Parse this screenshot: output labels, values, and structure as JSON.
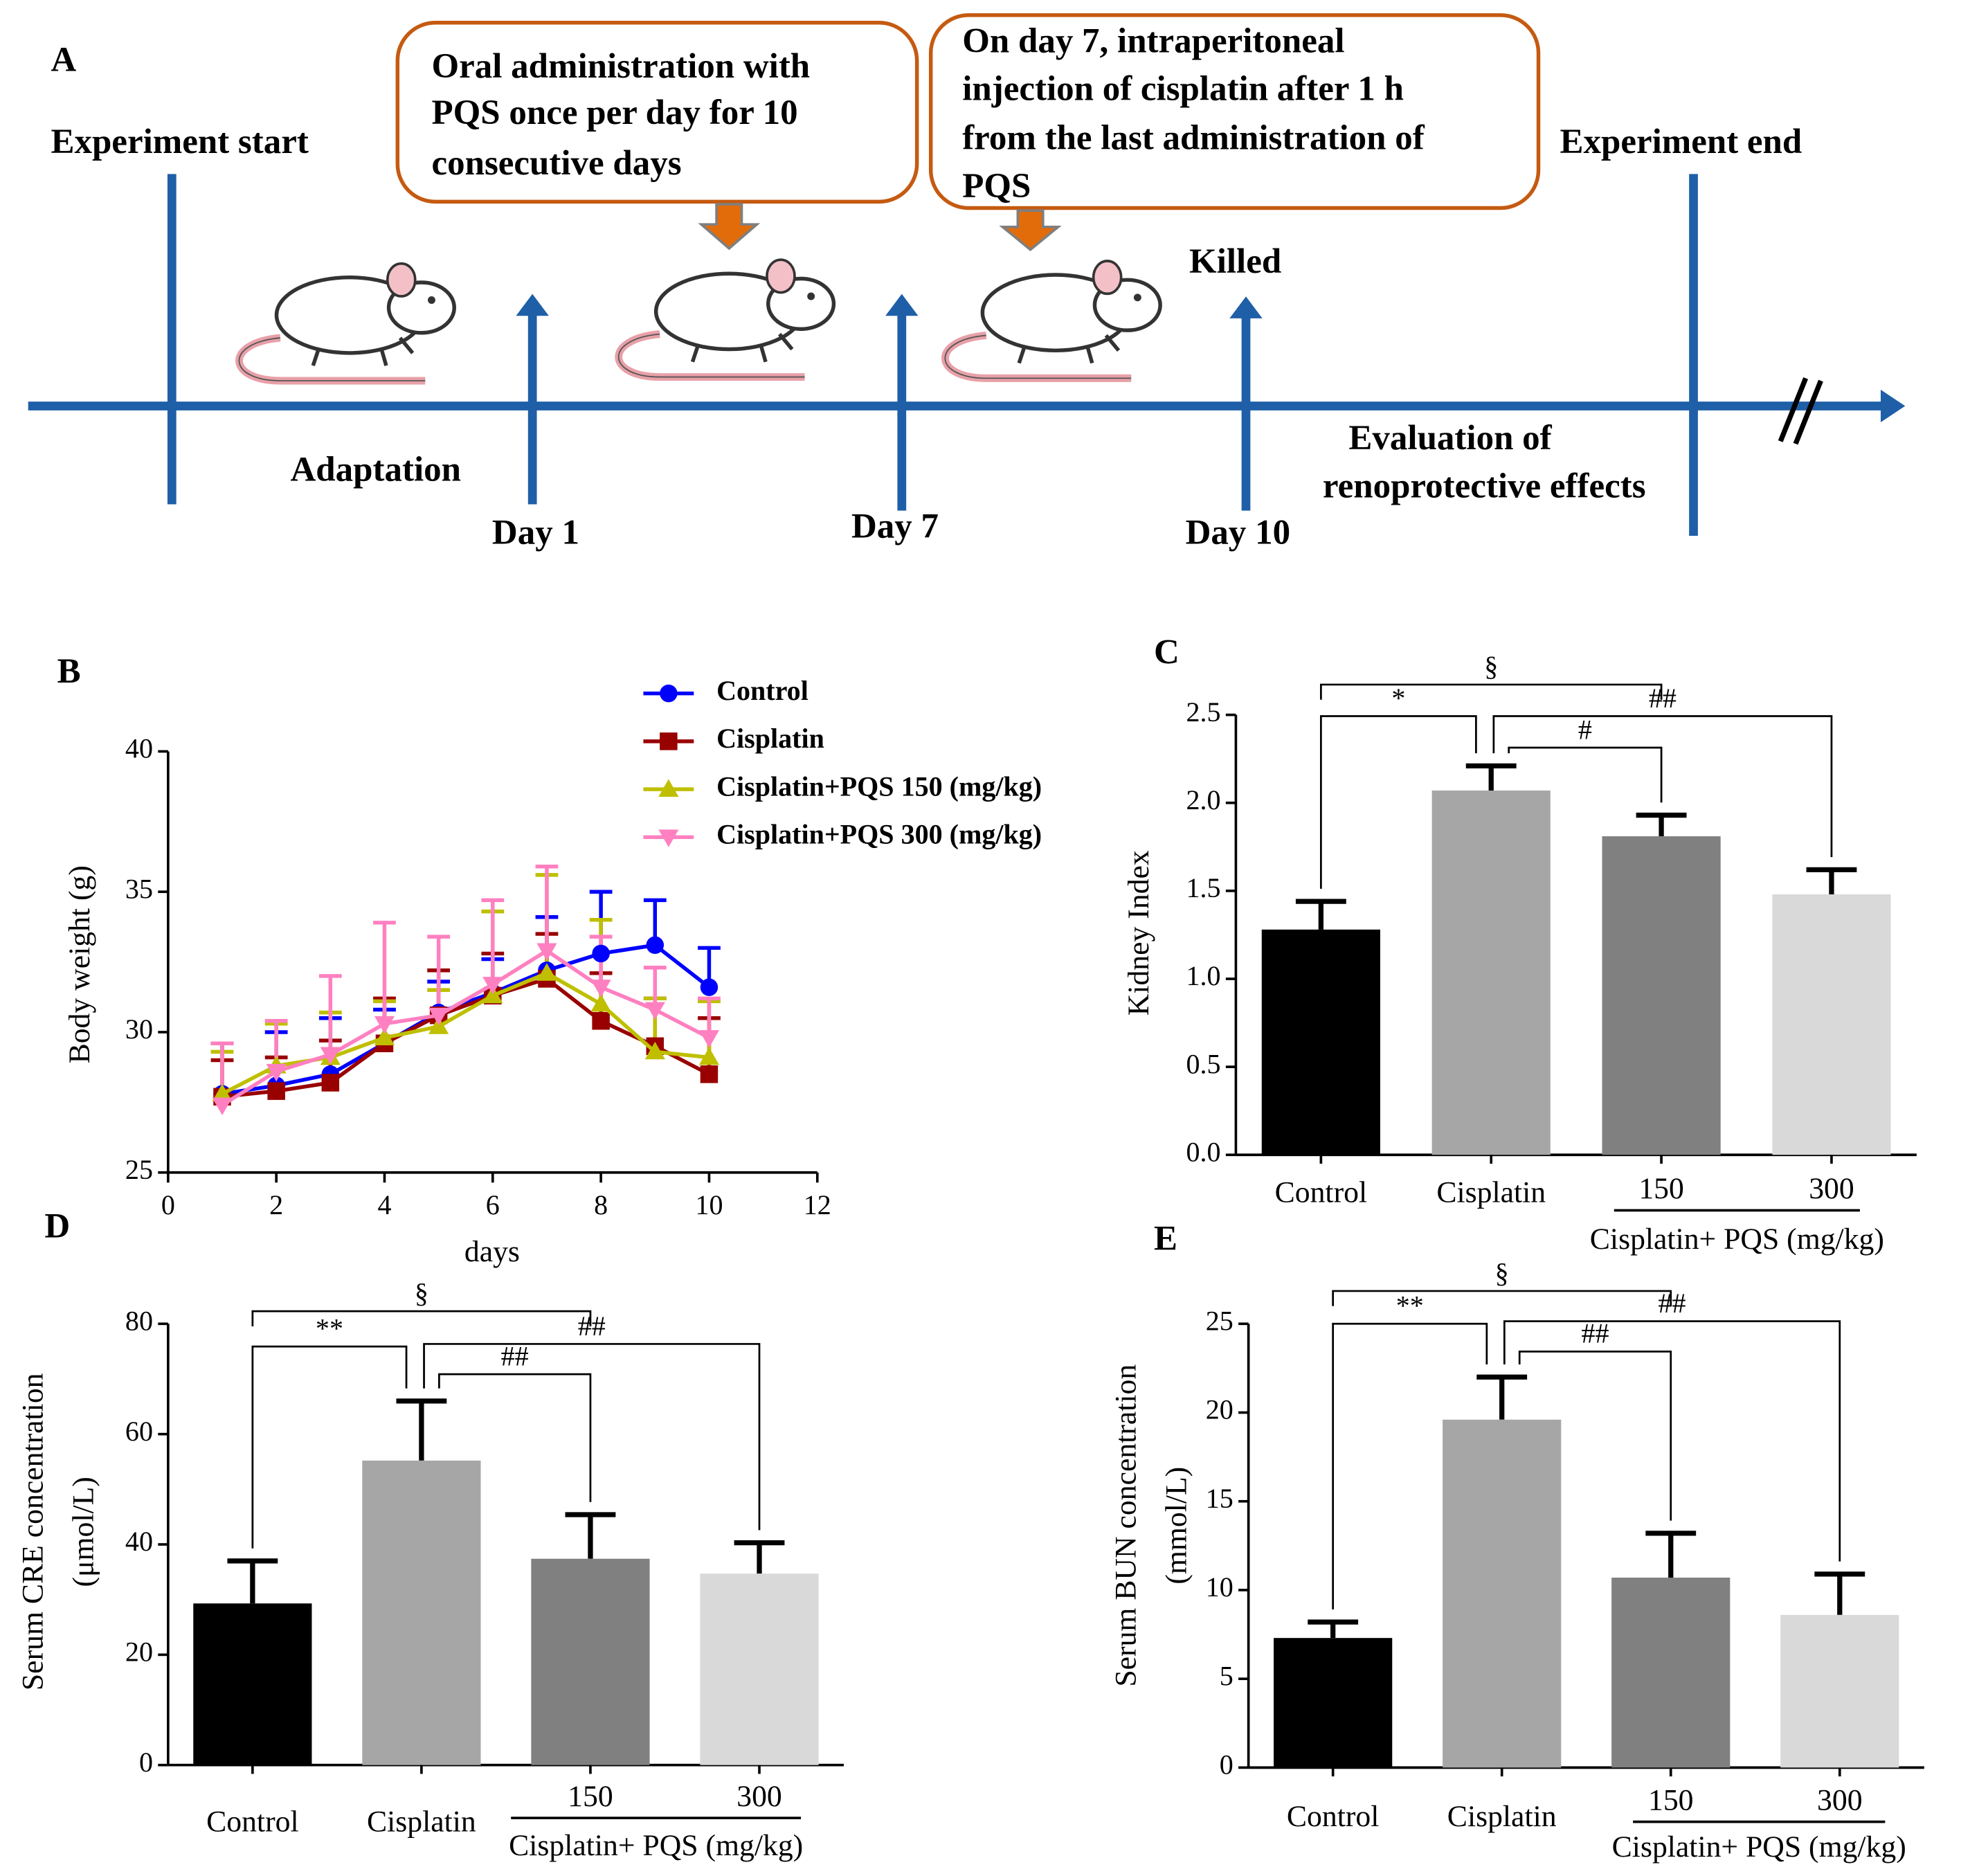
{
  "diagram": {
    "label": "A",
    "start": "Experiment start",
    "end": "Experiment end",
    "box1": [
      "Oral administration  with",
      "PQS once per day for 10",
      "consecutive days"
    ],
    "box2": [
      "On day 7, intraperitoneal",
      "injection of cisplatin  after 1 h",
      "from the last administration of",
      "PQS"
    ],
    "killed": "Killed",
    "adaptation": "Adaptation",
    "days": [
      "Day 1",
      "Day 7",
      "Day 10"
    ],
    "evaluation": [
      "Evaluation of",
      "renoprotective effects"
    ]
  },
  "chart_data": [
    {
      "type": "line",
      "panel": "B",
      "ylabel": [
        "Body weight (g)"
      ],
      "xlabel": "days",
      "x": [
        1,
        2,
        3,
        4,
        5,
        6,
        7,
        8,
        9,
        10
      ],
      "xlim": [
        0,
        12
      ],
      "xticks": [
        0,
        2,
        4,
        6,
        8,
        10,
        12
      ],
      "ylim": [
        25,
        40
      ],
      "yticks": [
        25,
        30,
        35,
        40
      ],
      "series": [
        {
          "name": "Control",
          "color": "#0000ff",
          "marker": "circle",
          "values": [
            27.8,
            28.1,
            28.5,
            29.6,
            30.7,
            31.4,
            32.2,
            32.8,
            33.1,
            31.6
          ],
          "errors": [
            1.8,
            1.9,
            2.0,
            1.2,
            1.1,
            1.2,
            1.9,
            2.2,
            1.6,
            1.4
          ]
        },
        {
          "name": "Cisplatin",
          "color": "#990000",
          "marker": "square",
          "values": [
            27.7,
            27.9,
            28.2,
            29.6,
            30.6,
            31.3,
            31.9,
            30.4,
            29.5,
            28.5
          ],
          "errors": [
            1.3,
            1.2,
            1.5,
            1.6,
            1.6,
            1.5,
            1.6,
            1.7,
            1.7,
            2.0
          ]
        },
        {
          "name": "Cisplatin+PQS 150 (mg/kg)",
          "color": "#bfbf00",
          "marker": "triangle-up",
          "values": [
            27.8,
            28.8,
            29.1,
            29.8,
            30.2,
            31.3,
            32.1,
            31.0,
            29.3,
            29.1
          ],
          "errors": [
            1.5,
            1.5,
            1.6,
            1.3,
            1.3,
            3.0,
            3.5,
            3.0,
            1.9,
            2.0
          ]
        },
        {
          "name": "Cisplatin+PQS 300 (mg/kg)",
          "color": "#ff80c0",
          "marker": "triangle-down",
          "values": [
            27.4,
            28.6,
            29.2,
            30.3,
            30.6,
            31.7,
            32.9,
            31.6,
            30.8,
            29.8
          ],
          "errors": [
            2.2,
            1.8,
            2.8,
            3.6,
            2.8,
            3.0,
            3.0,
            1.8,
            1.5,
            1.4
          ]
        }
      ]
    },
    {
      "type": "bar",
      "panel": "C",
      "ylabel": [
        "Kidney Index"
      ],
      "categories": [
        "Control",
        "Cisplatin",
        "150",
        "300"
      ],
      "group_label": "Cisplatin+ PQS (mg/kg)",
      "values": [
        1.28,
        2.07,
        1.81,
        1.48
      ],
      "errors": [
        0.16,
        0.14,
        0.12,
        0.14
      ],
      "colors": [
        "#000000",
        "#a6a6a6",
        "#808080",
        "#d9d9d9"
      ],
      "ylim": [
        0,
        2.5
      ],
      "yticks": [
        {
          "value": 0,
          "label": "0.0"
        },
        {
          "value": 0.5,
          "label": "0.5"
        },
        {
          "value": 1,
          "label": "1.0"
        },
        {
          "value": 1.5,
          "label": "1.5"
        },
        {
          "value": 2,
          "label": "2.0"
        },
        {
          "value": 2.5,
          "label": "2.5"
        }
      ],
      "significance": [
        {
          "from": 0,
          "to": 2,
          "label": "§"
        },
        {
          "from": 0,
          "to": 1,
          "label": "*"
        },
        {
          "from": 1,
          "to": 3,
          "label": "##"
        },
        {
          "from": 1,
          "to": 2,
          "label": "#"
        }
      ]
    },
    {
      "type": "bar",
      "panel": "D",
      "ylabel": [
        "Serum CRE concentration",
        "(μmol/L)"
      ],
      "categories": [
        "Control",
        "Cisplatin",
        "150",
        "300"
      ],
      "group_label": "Cisplatin+ PQS (mg/kg)",
      "values": [
        29.3,
        55.2,
        37.4,
        34.7
      ],
      "errors": [
        7.7,
        10.8,
        8.0,
        5.6
      ],
      "colors": [
        "#000000",
        "#a6a6a6",
        "#808080",
        "#d9d9d9"
      ],
      "ylim": [
        0,
        80
      ],
      "yticks": [
        0,
        20,
        40,
        60,
        80
      ],
      "significance": [
        {
          "from": 0,
          "to": 2,
          "label": "§"
        },
        {
          "from": 0,
          "to": 1,
          "label": "**"
        },
        {
          "from": 1,
          "to": 3,
          "label": "##"
        },
        {
          "from": 1,
          "to": 2,
          "label": "##"
        }
      ]
    },
    {
      "type": "bar",
      "panel": "E",
      "ylabel": [
        "Serum BUN concentration",
        "(mmol/L)"
      ],
      "categories": [
        "Control",
        "Cisplatin",
        "150",
        "300"
      ],
      "group_label": "Cisplatin+ PQS (mg/kg)",
      "values": [
        7.3,
        19.6,
        10.7,
        8.6
      ],
      "errors": [
        0.9,
        2.4,
        2.5,
        2.3
      ],
      "colors": [
        "#000000",
        "#a6a6a6",
        "#808080",
        "#d9d9d9"
      ],
      "ylim": [
        0,
        25
      ],
      "yticks": [
        0,
        5,
        10,
        15,
        20,
        25
      ],
      "significance": [
        {
          "from": 0,
          "to": 2,
          "label": "§"
        },
        {
          "from": 0,
          "to": 1,
          "label": "**"
        },
        {
          "from": 1,
          "to": 3,
          "label": "##"
        },
        {
          "from": 1,
          "to": 2,
          "label": "##"
        }
      ]
    }
  ]
}
